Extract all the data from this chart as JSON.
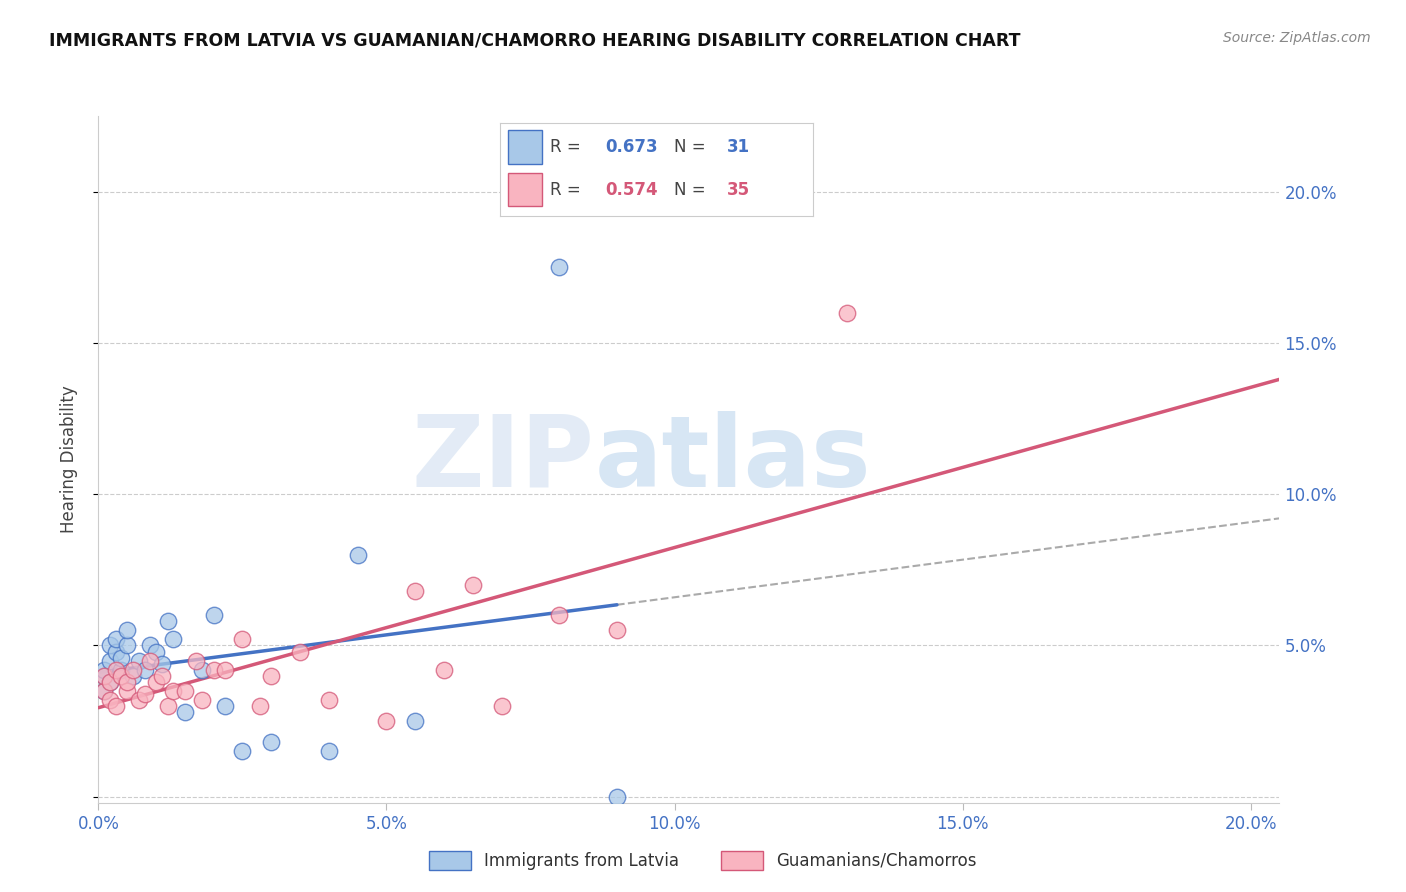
{
  "title": "IMMIGRANTS FROM LATVIA VS GUAMANIAN/CHAMORRO HEARING DISABILITY CORRELATION CHART",
  "source": "Source: ZipAtlas.com",
  "ylabel": "Hearing Disability",
  "xlim": [
    0.0,
    0.205
  ],
  "ylim": [
    -0.002,
    0.225
  ],
  "yticks": [
    0.0,
    0.05,
    0.1,
    0.15,
    0.2
  ],
  "xticks": [
    0.0,
    0.05,
    0.1,
    0.15,
    0.2
  ],
  "ytick_labels_right": [
    "",
    "5.0%",
    "10.0%",
    "15.0%",
    "20.0%"
  ],
  "xtick_labels": [
    "0.0%",
    "5.0%",
    "10.0%",
    "15.0%",
    "20.0%"
  ],
  "blue_R": 0.673,
  "blue_N": 31,
  "pink_R": 0.574,
  "pink_N": 35,
  "blue_scatter_color": "#a8c8e8",
  "blue_edge_color": "#4472c4",
  "blue_line_color": "#4472c4",
  "pink_scatter_color": "#f9b4c0",
  "pink_edge_color": "#d45878",
  "pink_line_color": "#d45878",
  "right_tick_color": "#4472c4",
  "bottom_tick_color": "#4472c4",
  "blue_scatter_x": [
    0.001,
    0.001,
    0.001,
    0.002,
    0.002,
    0.002,
    0.003,
    0.003,
    0.004,
    0.004,
    0.005,
    0.005,
    0.006,
    0.007,
    0.008,
    0.009,
    0.01,
    0.011,
    0.012,
    0.013,
    0.015,
    0.018,
    0.02,
    0.022,
    0.025,
    0.03,
    0.04,
    0.045,
    0.055,
    0.08,
    0.09
  ],
  "blue_scatter_y": [
    0.035,
    0.04,
    0.042,
    0.038,
    0.045,
    0.05,
    0.048,
    0.052,
    0.042,
    0.046,
    0.05,
    0.055,
    0.04,
    0.045,
    0.042,
    0.05,
    0.048,
    0.044,
    0.058,
    0.052,
    0.028,
    0.042,
    0.06,
    0.03,
    0.015,
    0.018,
    0.015,
    0.08,
    0.025,
    0.175,
    0.0
  ],
  "pink_scatter_x": [
    0.001,
    0.001,
    0.002,
    0.002,
    0.003,
    0.003,
    0.004,
    0.005,
    0.005,
    0.006,
    0.007,
    0.008,
    0.009,
    0.01,
    0.011,
    0.012,
    0.013,
    0.015,
    0.017,
    0.018,
    0.02,
    0.022,
    0.025,
    0.028,
    0.03,
    0.035,
    0.04,
    0.05,
    0.055,
    0.06,
    0.065,
    0.07,
    0.08,
    0.09,
    0.13
  ],
  "pink_scatter_y": [
    0.035,
    0.04,
    0.032,
    0.038,
    0.042,
    0.03,
    0.04,
    0.035,
    0.038,
    0.042,
    0.032,
    0.034,
    0.045,
    0.038,
    0.04,
    0.03,
    0.035,
    0.035,
    0.045,
    0.032,
    0.042,
    0.042,
    0.052,
    0.03,
    0.04,
    0.048,
    0.032,
    0.025,
    0.068,
    0.042,
    0.07,
    0.03,
    0.06,
    0.055,
    0.16
  ],
  "legend_label_blue": "Immigrants from Latvia",
  "legend_label_pink": "Guamanians/Chamorros",
  "watermark_zip": "ZIP",
  "watermark_atlas": "atlas"
}
